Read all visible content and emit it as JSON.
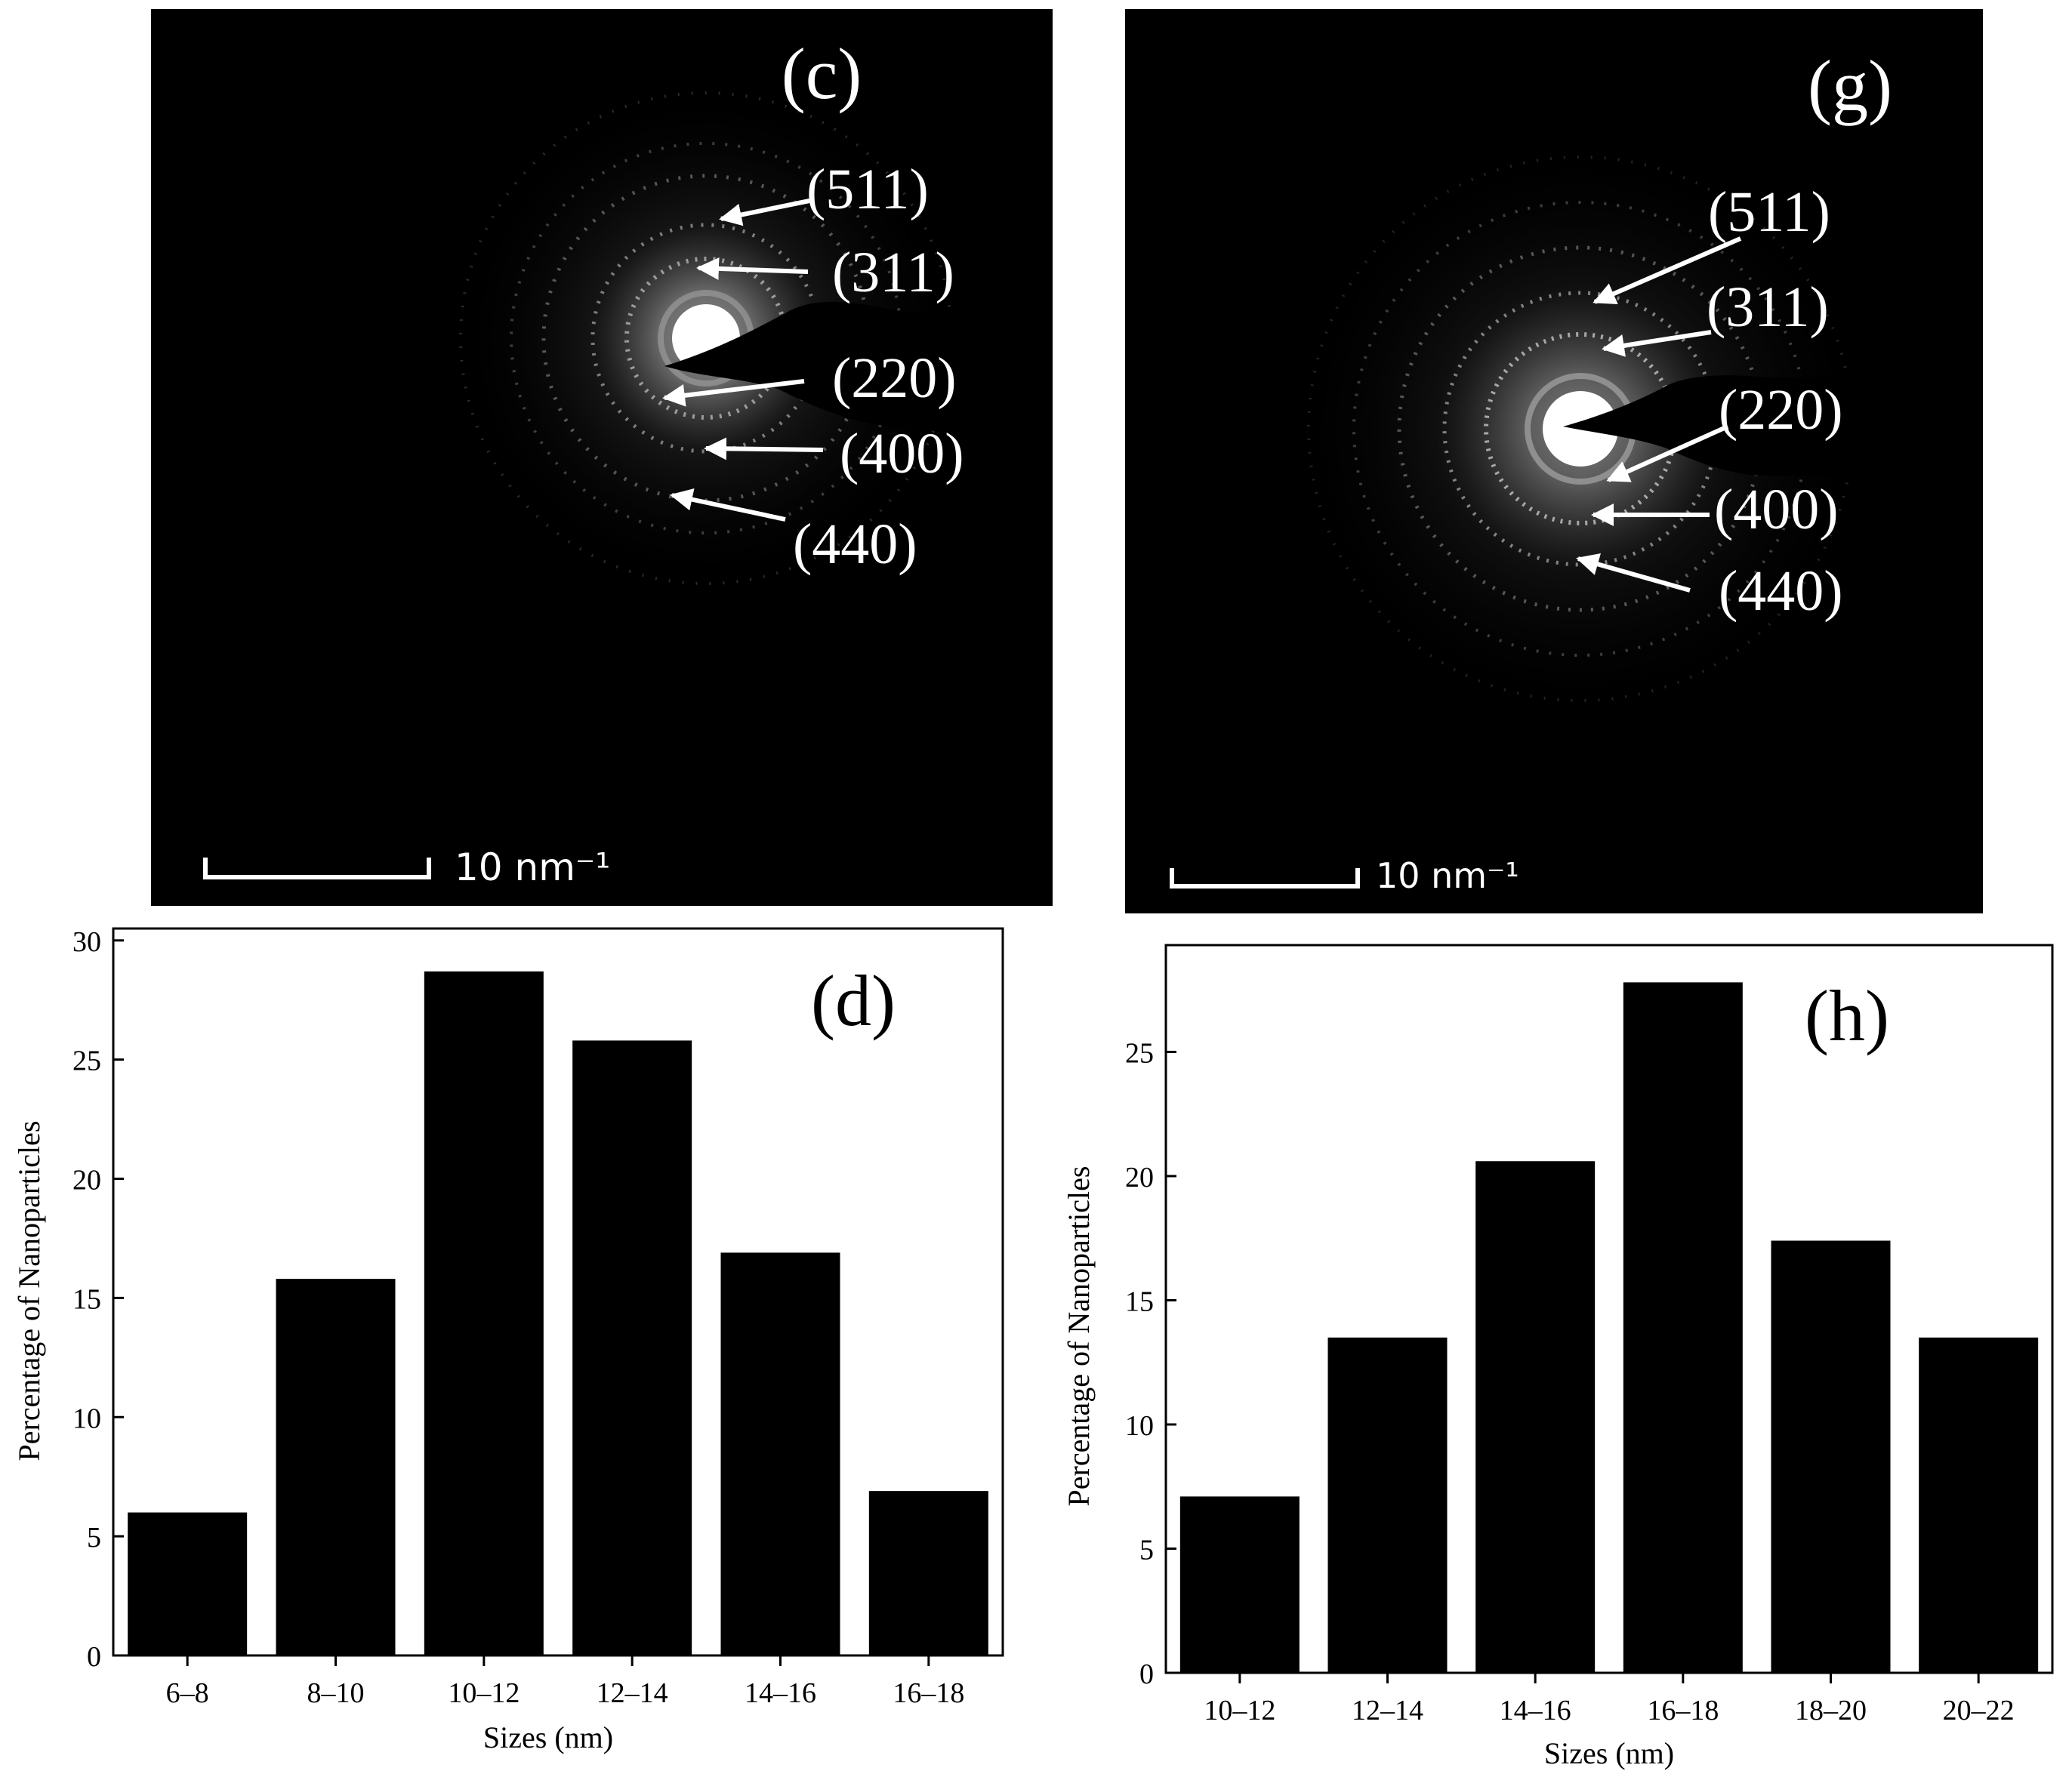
{
  "figure": {
    "panels": {
      "c": {
        "label": "(c)",
        "miller": [
          "(511)",
          "(311)",
          "(220)",
          "(400)",
          "(440)"
        ],
        "scalebar": "10 nm⁻¹"
      },
      "g": {
        "label": "(g)",
        "miller": [
          "(511)",
          "(311)",
          "(220)",
          "(400)",
          "(440)"
        ],
        "scalebar": "10 nm⁻¹"
      }
    }
  },
  "chart_data": [
    {
      "id": "d",
      "type": "bar",
      "panel_label": "(d)",
      "categories": [
        "6–8",
        "8–10",
        "10–12",
        "12–14",
        "14–16",
        "16–18"
      ],
      "values": [
        6.0,
        15.8,
        28.7,
        25.8,
        16.9,
        6.9
      ],
      "xlabel": "Sizes (nm)",
      "ylabel": "Percentage of Nanoparticles",
      "ylim": [
        0,
        30.5
      ],
      "yticks": [
        0,
        5,
        10,
        15,
        20,
        25,
        30
      ],
      "bar_color": "#000000"
    },
    {
      "id": "h",
      "type": "bar",
      "panel_label": "(h)",
      "categories": [
        "10–12",
        "12–14",
        "14–16",
        "16–18",
        "18–20",
        "20–22"
      ],
      "values": [
        7.1,
        13.5,
        20.6,
        27.8,
        17.4,
        13.5
      ],
      "xlabel": "Sizes (nm)",
      "ylabel": "Percentage of Nanoparticles",
      "ylim": [
        0,
        29.3
      ],
      "yticks": [
        0,
        5,
        10,
        15,
        20,
        25
      ],
      "bar_color": "#000000"
    }
  ]
}
